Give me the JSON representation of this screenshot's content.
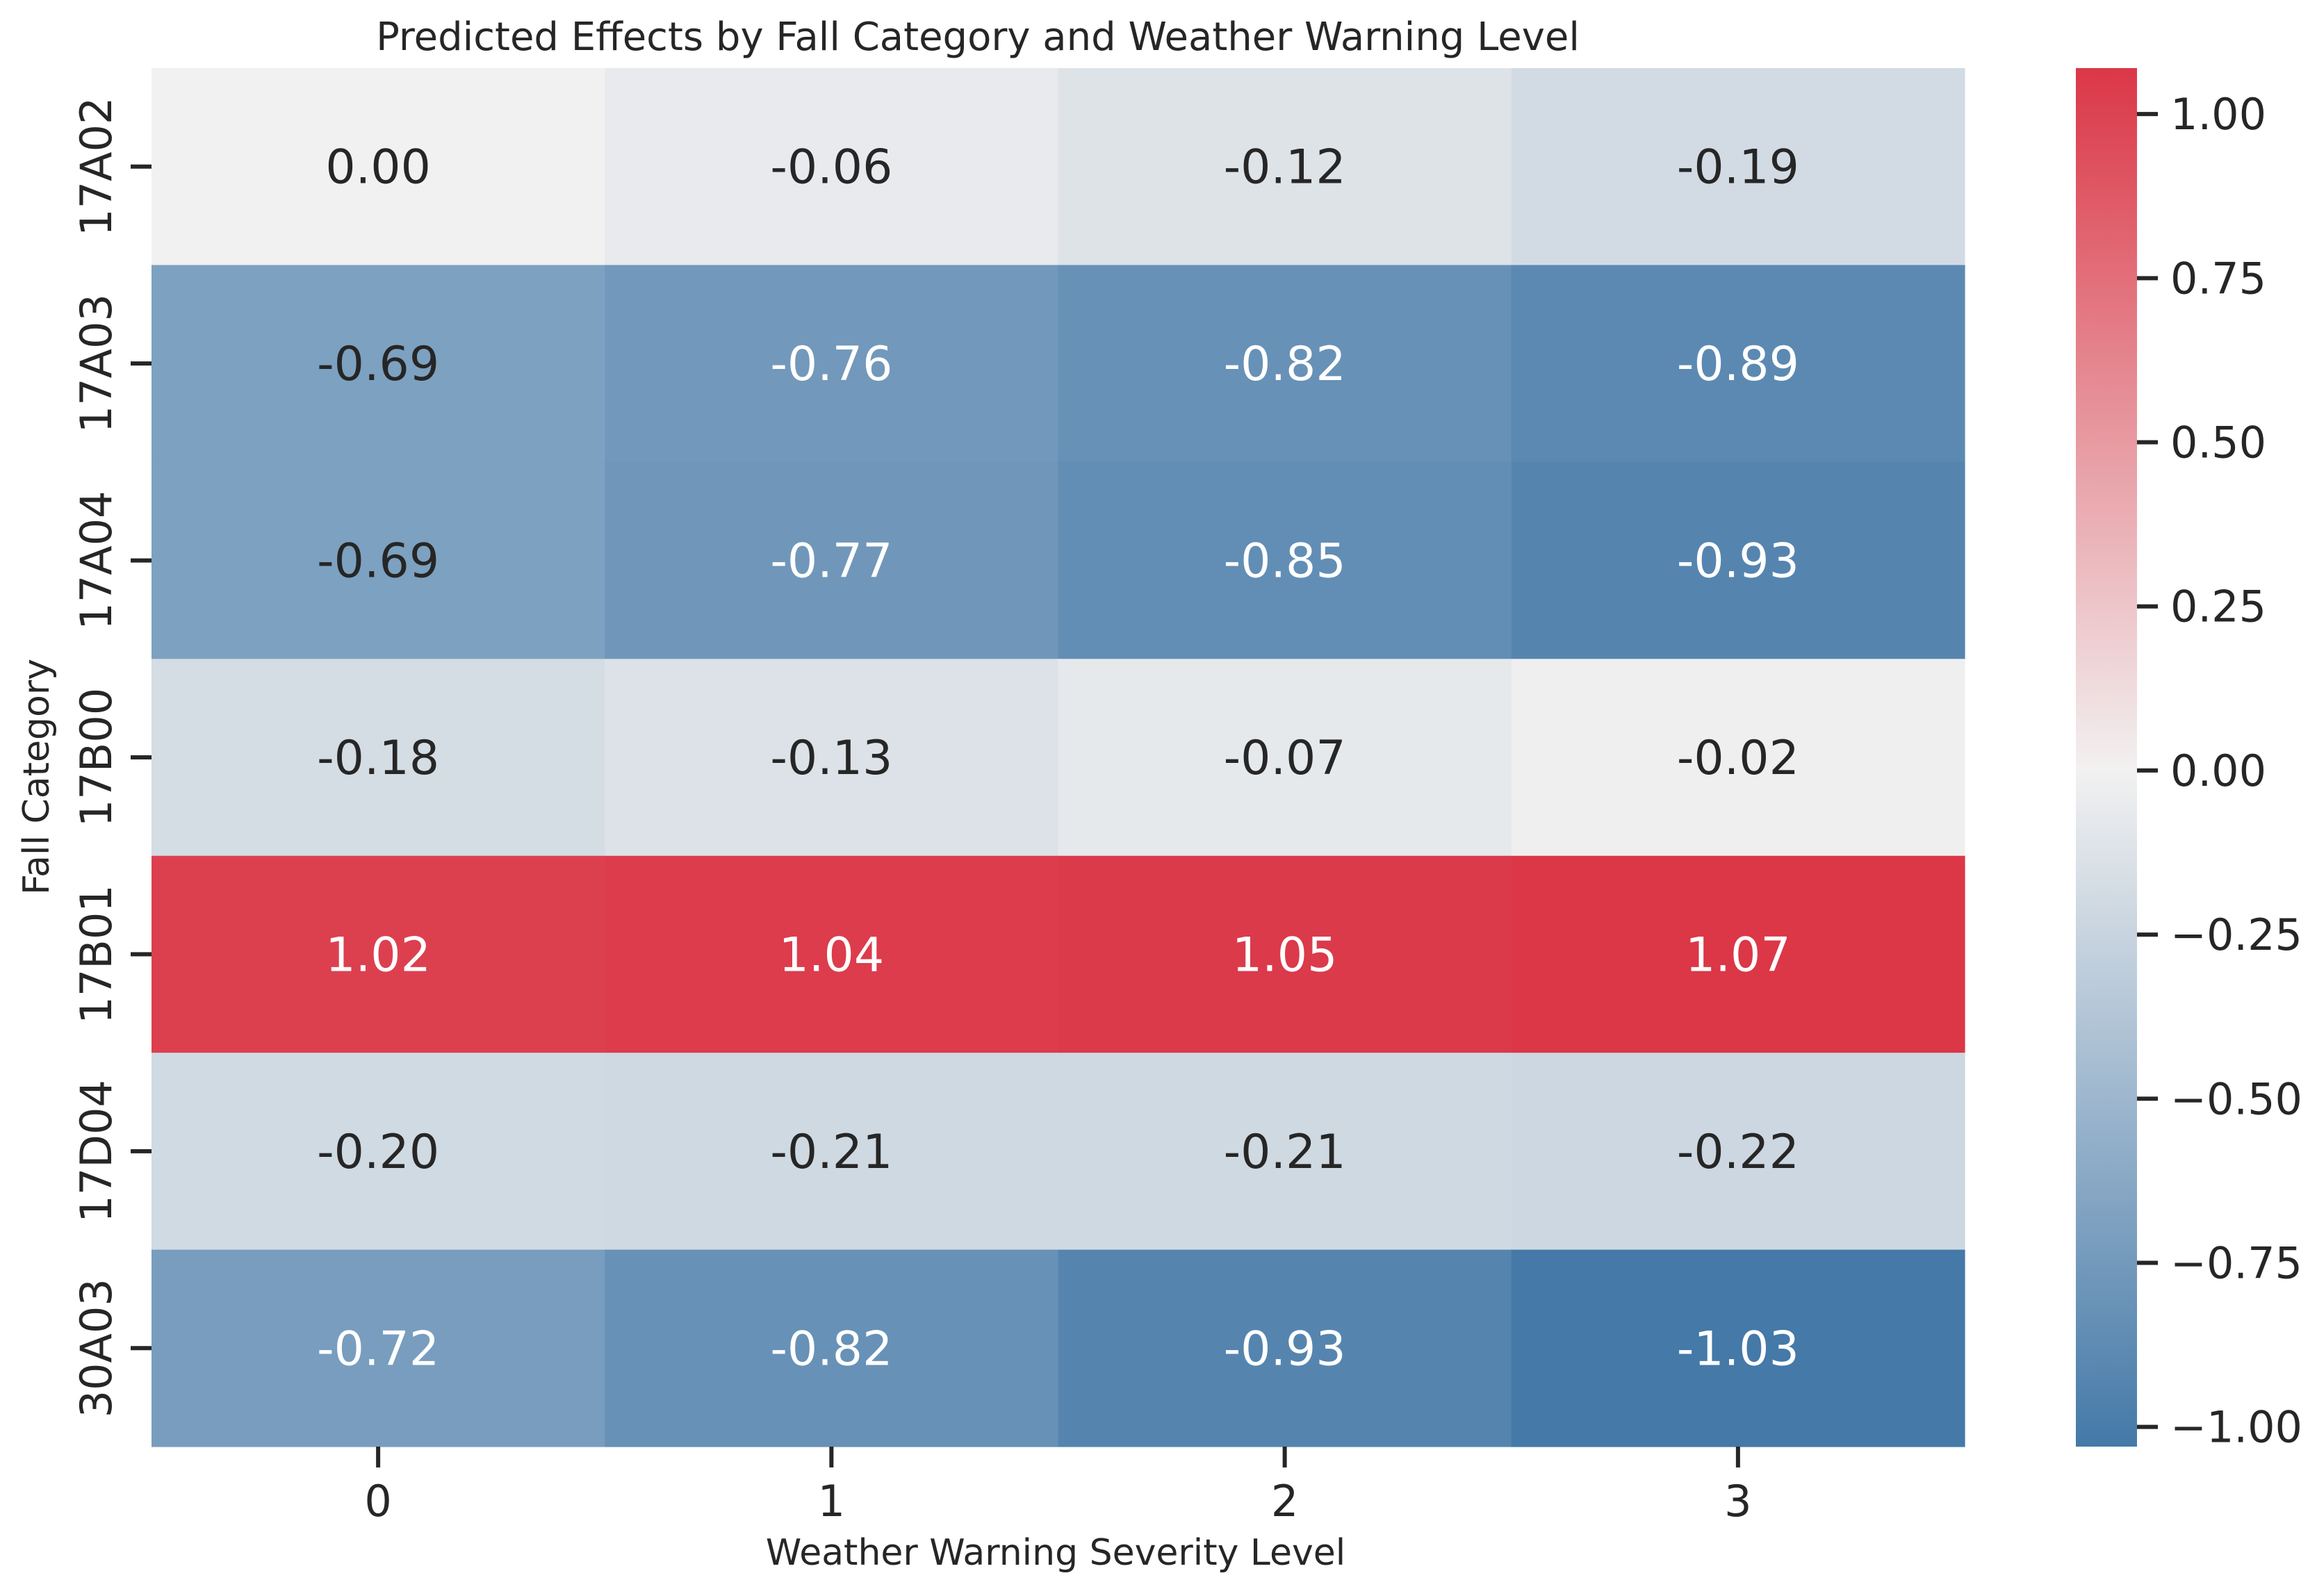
{
  "chart_data": {
    "type": "heatmap",
    "title": "Predicted Effects by Fall Category and Weather Warning Level",
    "xlabel": "Weather Warning Severity Level",
    "ylabel": "Fall Category",
    "x_categories": [
      "0",
      "1",
      "2",
      "3"
    ],
    "y_categories": [
      "17A02",
      "17A03",
      "17A04",
      "17B00",
      "17B01",
      "17D04",
      "30A03"
    ],
    "values": [
      [
        0.0,
        -0.06,
        -0.12,
        -0.19
      ],
      [
        -0.69,
        -0.76,
        -0.82,
        -0.89
      ],
      [
        -0.69,
        -0.77,
        -0.85,
        -0.93
      ],
      [
        -0.18,
        -0.13,
        -0.07,
        -0.02
      ],
      [
        1.02,
        1.04,
        1.05,
        1.07
      ],
      [
        -0.2,
        -0.21,
        -0.21,
        -0.22
      ],
      [
        -0.72,
        -0.82,
        -0.93,
        -1.03
      ]
    ],
    "value_format": "2 decimals",
    "colorbar": {
      "vmin": -1.03,
      "vmax": 1.07,
      "center": 0.0,
      "ticks": [
        1.0,
        0.75,
        0.5,
        0.25,
        0.0,
        -0.25,
        -0.5,
        -0.75,
        -1.0
      ],
      "tick_labels": [
        "1.00",
        "0.75",
        "0.50",
        "0.25",
        "0.00",
        "−0.25",
        "−0.50",
        "−0.75",
        "−1.00"
      ],
      "colors": {
        "low": "#4479a8",
        "mid": "#f2f1f1",
        "high": "#db3747"
      },
      "placement": "right"
    },
    "grid": false
  }
}
